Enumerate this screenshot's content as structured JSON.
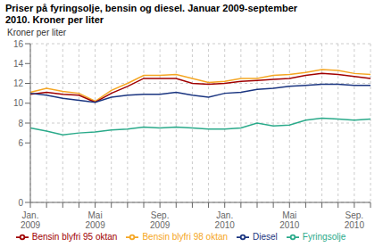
{
  "chart_data": {
    "type": "line",
    "title": "Priser på fyringsolje, bensin og diesel. Januar 2009-september\n2010. Kroner per liter",
    "y_label": "Kroner per liter",
    "categories": [
      "Jan.\n2009",
      null,
      null,
      null,
      "Mai\n2009",
      null,
      null,
      null,
      "Sep.\n2009",
      null,
      null,
      null,
      "Jan.\n2010",
      null,
      null,
      null,
      "Mai\n2010",
      null,
      null,
      null,
      "Sep.\n2010",
      null
    ],
    "series": [
      {
        "name": "Bensin blyfri 98 oktan",
        "color": "#f5a623",
        "values": [
          11.1,
          11.5,
          11.2,
          11.0,
          10.2,
          11.3,
          12.0,
          12.8,
          12.8,
          12.9,
          12.5,
          12.1,
          12.2,
          12.5,
          12.5,
          12.8,
          12.9,
          13.1,
          13.4,
          13.3,
          13.0,
          12.9
        ]
      },
      {
        "name": "Bensin blyfri 95 oktan",
        "color": "#a00000",
        "values": [
          10.9,
          11.1,
          10.9,
          10.8,
          10.1,
          11.0,
          11.7,
          12.5,
          12.5,
          12.5,
          12.0,
          11.9,
          12.0,
          12.2,
          12.3,
          12.4,
          12.5,
          12.8,
          13.0,
          12.9,
          12.7,
          12.5
        ]
      },
      {
        "name": "Diesel",
        "color": "#1a3580",
        "values": [
          11.0,
          10.8,
          10.5,
          10.3,
          10.1,
          10.6,
          10.8,
          10.9,
          10.9,
          11.1,
          10.8,
          10.6,
          11.0,
          11.1,
          11.4,
          11.5,
          11.7,
          11.8,
          11.9,
          11.9,
          11.8,
          11.8
        ]
      },
      {
        "name": "Fyringsolje",
        "color": "#2aaa8a",
        "values": [
          7.5,
          7.2,
          6.8,
          7.0,
          7.1,
          7.3,
          7.4,
          7.6,
          7.5,
          7.6,
          7.5,
          7.4,
          7.4,
          7.5,
          8.0,
          7.7,
          7.8,
          8.3,
          8.5,
          8.4,
          8.3,
          8.4
        ]
      }
    ],
    "ylim": [
      0,
      16
    ],
    "yticks": [
      0,
      6,
      8,
      10,
      12,
      14,
      16
    ],
    "grid": true,
    "legend": "bottom"
  }
}
